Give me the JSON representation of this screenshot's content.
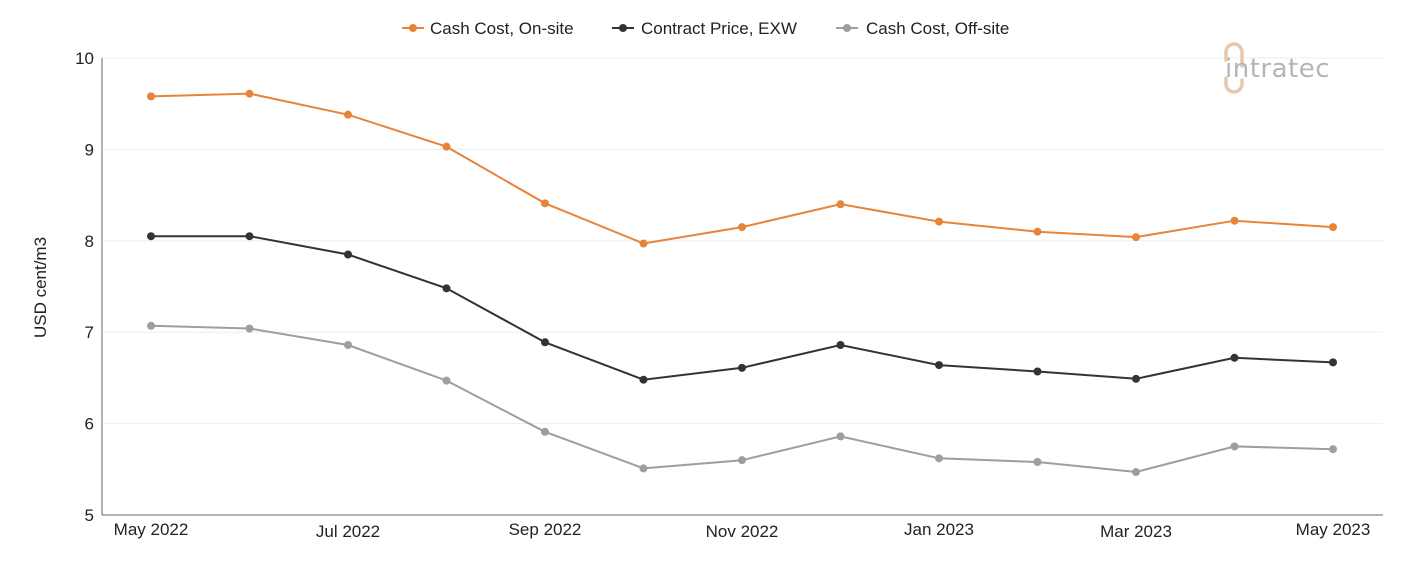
{
  "brand": {
    "logo_text": "intratec"
  },
  "colors": {
    "on_site": "#e8843a",
    "contract": "#333333",
    "off_site": "#9e9e9e",
    "logo_gray": "#b5b5b5",
    "logo_accent": "#e6c9a8"
  },
  "chart_data": {
    "type": "line",
    "title": "",
    "xlabel": "",
    "ylabel": "USD cent/m3",
    "ylim": [
      5,
      10
    ],
    "yticks": [
      5,
      6,
      7,
      8,
      9,
      10
    ],
    "categories": [
      "May 2022",
      "Jun 2022",
      "Jul 2022",
      "Aug 2022",
      "Sep 2022",
      "Oct 2022",
      "Nov 2022",
      "Dec 2022",
      "Jan 2023",
      "Feb 2023",
      "Mar 2023",
      "Apr 2023",
      "May 2023"
    ],
    "xtick_labels": [
      "May 2022",
      "",
      "Jul 2022",
      "",
      "Sep 2022",
      "",
      "Nov 2022",
      "",
      "Jan 2023",
      "",
      "Mar 2023",
      "",
      "May 2023"
    ],
    "grid": true,
    "legend_position": "top-center",
    "series": [
      {
        "name": "Cash Cost, On-site",
        "color": "#e8843a",
        "values": [
          9.58,
          9.61,
          9.38,
          9.03,
          8.41,
          7.97,
          8.15,
          8.4,
          8.21,
          8.1,
          8.04,
          8.22,
          8.15
        ]
      },
      {
        "name": "Contract Price, EXW",
        "color": "#333333",
        "values": [
          8.05,
          8.05,
          7.85,
          7.48,
          6.89,
          6.48,
          6.61,
          6.86,
          6.64,
          6.57,
          6.49,
          6.72,
          6.67
        ]
      },
      {
        "name": "Cash Cost, Off-site",
        "color": "#9e9e9e",
        "values": [
          7.07,
          7.04,
          6.86,
          6.47,
          5.91,
          5.51,
          5.6,
          5.86,
          5.62,
          5.58,
          5.47,
          5.75,
          5.72
        ]
      }
    ]
  }
}
